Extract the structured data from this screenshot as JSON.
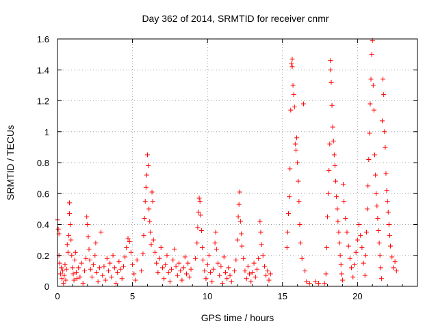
{
  "chart_data": {
    "type": "scatter",
    "title": "Day 362 of 2014, SRMTID for receiver cnmr",
    "xlabel": "GPS time / hours",
    "ylabel": "SRMTID / TECUs",
    "xlim": [
      0,
      24
    ],
    "ylim": [
      0,
      1.6
    ],
    "xticks": [
      "0",
      "5",
      "10",
      "15",
      "20"
    ],
    "yticks": [
      "0",
      "0.2",
      "0.4",
      "0.6",
      "0.8",
      "1",
      "1.2",
      "1.4",
      "1.6"
    ],
    "grid": true,
    "marker": "plus",
    "series": [
      {
        "color": "#ff0000",
        "points": [
          [
            0.0,
            0.43
          ],
          [
            0.05,
            0.37
          ],
          [
            0.1,
            0.34
          ],
          [
            0.1,
            0.2
          ],
          [
            0.15,
            0.15
          ],
          [
            0.2,
            0.08
          ],
          [
            0.25,
            0.12
          ],
          [
            0.3,
            0.05
          ],
          [
            0.35,
            0.1
          ],
          [
            0.4,
            0.02
          ],
          [
            0.45,
            0.07
          ],
          [
            0.5,
            0.14
          ],
          [
            0.55,
            0.04
          ],
          [
            0.6,
            0.11
          ],
          [
            0.65,
            0.27
          ],
          [
            0.7,
            0.22
          ],
          [
            0.75,
            0.33
          ],
          [
            0.8,
            0.54
          ],
          [
            0.8,
            0.47
          ],
          [
            0.85,
            0.4
          ],
          [
            0.9,
            0.3
          ],
          [
            0.95,
            0.2
          ],
          [
            1.0,
            0.12
          ],
          [
            1.05,
            0.08
          ],
          [
            1.1,
            0.04
          ],
          [
            1.15,
            0.17
          ],
          [
            1.2,
            0.22
          ],
          [
            1.25,
            0.09
          ],
          [
            1.3,
            0.05
          ],
          [
            1.4,
            0.12
          ],
          [
            1.5,
            0.06
          ],
          [
            1.6,
            0.15
          ],
          [
            1.7,
            0.02
          ],
          [
            1.8,
            0.1
          ],
          [
            1.9,
            0.18
          ],
          [
            1.95,
            0.45
          ],
          [
            2.0,
            0.4
          ],
          [
            2.05,
            0.32
          ],
          [
            2.1,
            0.24
          ],
          [
            2.15,
            0.17
          ],
          [
            2.2,
            0.11
          ],
          [
            2.3,
            0.06
          ],
          [
            2.4,
            0.14
          ],
          [
            2.5,
            0.2
          ],
          [
            2.55,
            0.28
          ],
          [
            2.6,
            0.09
          ],
          [
            2.7,
            0.03
          ],
          [
            2.8,
            0.12
          ],
          [
            2.9,
            0.35
          ],
          [
            3.0,
            0.07
          ],
          [
            3.1,
            0.13
          ],
          [
            3.2,
            0.04
          ],
          [
            3.3,
            0.18
          ],
          [
            3.4,
            0.1
          ],
          [
            3.5,
            0.15
          ],
          [
            3.6,
            0.06
          ],
          [
            3.7,
            0.2
          ],
          [
            3.8,
            0.12
          ],
          [
            3.9,
            0.02
          ],
          [
            4.0,
            0.09
          ],
          [
            4.1,
            0.16
          ],
          [
            4.2,
            0.11
          ],
          [
            4.3,
            0.05
          ],
          [
            4.4,
            0.13
          ],
          [
            4.5,
            0.19
          ],
          [
            4.6,
            0.25
          ],
          [
            4.7,
            0.31
          ],
          [
            4.8,
            0.29
          ],
          [
            4.9,
            0.22
          ],
          [
            5.0,
            0.14
          ],
          [
            5.1,
            0.08
          ],
          [
            5.2,
            0.04
          ],
          [
            5.3,
            0.17
          ],
          [
            5.6,
            0.1
          ],
          [
            5.7,
            0.21
          ],
          [
            5.75,
            0.33
          ],
          [
            5.8,
            0.44
          ],
          [
            5.85,
            0.55
          ],
          [
            5.9,
            0.64
          ],
          [
            5.95,
            0.72
          ],
          [
            6.0,
            0.85
          ],
          [
            6.05,
            0.78
          ],
          [
            6.1,
            0.5
          ],
          [
            6.15,
            0.42
          ],
          [
            6.2,
            0.35
          ],
          [
            6.25,
            0.27
          ],
          [
            6.3,
            0.61
          ],
          [
            6.35,
            0.55
          ],
          [
            6.4,
            0.3
          ],
          [
            6.5,
            0.22
          ],
          [
            6.6,
            0.15
          ],
          [
            6.7,
            0.09
          ],
          [
            6.8,
            0.18
          ],
          [
            6.9,
            0.25
          ],
          [
            7.0,
            0.12
          ],
          [
            7.1,
            0.05
          ],
          [
            7.2,
            0.14
          ],
          [
            7.3,
            0.2
          ],
          [
            7.4,
            0.09
          ],
          [
            7.5,
            0.03
          ],
          [
            7.6,
            0.11
          ],
          [
            7.7,
            0.17
          ],
          [
            7.8,
            0.24
          ],
          [
            7.9,
            0.13
          ],
          [
            8.0,
            0.07
          ],
          [
            8.1,
            0.15
          ],
          [
            8.2,
            0.1
          ],
          [
            8.3,
            0.04
          ],
          [
            8.4,
            0.12
          ],
          [
            8.5,
            0.19
          ],
          [
            8.6,
            0.08
          ],
          [
            8.7,
            0.15
          ],
          [
            8.8,
            0.06
          ],
          [
            8.9,
            0.11
          ],
          [
            9.2,
            0.18
          ],
          [
            9.3,
            0.28
          ],
          [
            9.35,
            0.38
          ],
          [
            9.4,
            0.48
          ],
          [
            9.45,
            0.57
          ],
          [
            9.5,
            0.55
          ],
          [
            9.55,
            0.46
          ],
          [
            9.6,
            0.36
          ],
          [
            9.65,
            0.25
          ],
          [
            9.7,
            0.17
          ],
          [
            9.8,
            0.1
          ],
          [
            9.9,
            0.05
          ],
          [
            10.0,
            0.14
          ],
          [
            10.1,
            0.2
          ],
          [
            10.2,
            0.09
          ],
          [
            10.3,
            0.03
          ],
          [
            10.4,
            0.11
          ],
          [
            10.5,
            0.28
          ],
          [
            10.55,
            0.35
          ],
          [
            10.6,
            0.24
          ],
          [
            10.7,
            0.15
          ],
          [
            10.8,
            0.07
          ],
          [
            10.9,
            0.13
          ],
          [
            11.0,
            0.02
          ],
          [
            11.1,
            0.19
          ],
          [
            11.2,
            0.09
          ],
          [
            11.3,
            0.05
          ],
          [
            11.4,
            0.12
          ],
          [
            11.5,
            0.07
          ],
          [
            11.6,
            0.03
          ],
          [
            11.8,
            0.1
          ],
          [
            11.9,
            0.17
          ],
          [
            12.0,
            0.3
          ],
          [
            12.05,
            0.45
          ],
          [
            12.1,
            0.53
          ],
          [
            12.15,
            0.61
          ],
          [
            12.2,
            0.42
          ],
          [
            12.25,
            0.34
          ],
          [
            12.3,
            0.26
          ],
          [
            12.4,
            0.18
          ],
          [
            12.5,
            0.1
          ],
          [
            12.6,
            0.05
          ],
          [
            12.7,
            0.13
          ],
          [
            12.8,
            0.08
          ],
          [
            12.9,
            0.03
          ],
          [
            13.0,
            0.09
          ],
          [
            13.1,
            0.15
          ],
          [
            13.2,
            0.06
          ],
          [
            13.3,
            0.11
          ],
          [
            13.4,
            0.18
          ],
          [
            13.5,
            0.42
          ],
          [
            13.55,
            0.35
          ],
          [
            13.6,
            0.27
          ],
          [
            13.7,
            0.2
          ],
          [
            13.8,
            0.13
          ],
          [
            13.9,
            0.07
          ],
          [
            14.0,
            0.1
          ],
          [
            14.1,
            0.04
          ],
          [
            14.2,
            0.08
          ],
          [
            15.3,
            0.25
          ],
          [
            15.35,
            0.35
          ],
          [
            15.4,
            0.47
          ],
          [
            15.45,
            0.58
          ],
          [
            15.5,
            0.76
          ],
          [
            15.55,
            1.14
          ],
          [
            15.6,
            1.44
          ],
          [
            15.65,
            1.47
          ],
          [
            15.65,
            1.42
          ],
          [
            15.7,
            1.3
          ],
          [
            15.75,
            1.24
          ],
          [
            15.8,
            1.16
          ],
          [
            15.85,
            0.92
          ],
          [
            15.9,
            0.88
          ],
          [
            15.95,
            0.96
          ],
          [
            16.0,
            0.8
          ],
          [
            16.05,
            0.68
          ],
          [
            16.1,
            0.55
          ],
          [
            16.15,
            0.4
          ],
          [
            16.2,
            0.28
          ],
          [
            16.3,
            0.18
          ],
          [
            16.4,
            1.18
          ],
          [
            16.5,
            0.1
          ],
          [
            16.6,
            0.03
          ],
          [
            16.8,
            0.02
          ],
          [
            17.2,
            0.03
          ],
          [
            17.4,
            0.02
          ],
          [
            17.8,
            0.02
          ],
          [
            17.9,
            0.08
          ],
          [
            17.95,
            0.25
          ],
          [
            18.0,
            0.45
          ],
          [
            18.05,
            0.6
          ],
          [
            18.1,
            0.75
          ],
          [
            18.15,
            0.92
          ],
          [
            18.2,
            1.46
          ],
          [
            18.2,
            1.4
          ],
          [
            18.25,
            1.32
          ],
          [
            18.3,
            1.17
          ],
          [
            18.35,
            1.03
          ],
          [
            18.4,
            0.94
          ],
          [
            18.45,
            0.85
          ],
          [
            18.5,
            0.78
          ],
          [
            18.55,
            0.68
          ],
          [
            18.6,
            0.58
          ],
          [
            18.65,
            0.5
          ],
          [
            18.7,
            0.42
          ],
          [
            18.75,
            0.35
          ],
          [
            18.8,
            0.28
          ],
          [
            18.85,
            0.2
          ],
          [
            18.9,
            0.14
          ],
          [
            18.95,
            0.08
          ],
          [
            19.0,
            0.04
          ],
          [
            19.05,
            0.66
          ],
          [
            19.1,
            0.55
          ],
          [
            19.2,
            0.44
          ],
          [
            19.3,
            0.35
          ],
          [
            19.4,
            0.26
          ],
          [
            19.5,
            0.18
          ],
          [
            19.6,
            0.12
          ],
          [
            19.7,
            0.06
          ],
          [
            19.8,
            0.14
          ],
          [
            19.9,
            0.22
          ],
          [
            20.0,
            0.3
          ],
          [
            20.1,
            0.4
          ],
          [
            20.2,
            0.33
          ],
          [
            20.3,
            0.25
          ],
          [
            20.4,
            0.15
          ],
          [
            20.5,
            0.07
          ],
          [
            20.55,
            0.2
          ],
          [
            20.6,
            0.35
          ],
          [
            20.65,
            0.5
          ],
          [
            20.7,
            0.65
          ],
          [
            20.75,
            0.82
          ],
          [
            20.8,
            0.99
          ],
          [
            20.85,
            1.18
          ],
          [
            20.9,
            1.34
          ],
          [
            20.95,
            1.5
          ],
          [
            21.0,
            1.59
          ],
          [
            21.05,
            1.3
          ],
          [
            21.1,
            1.14
          ],
          [
            21.15,
            0.85
          ],
          [
            21.2,
            0.72
          ],
          [
            21.25,
            0.6
          ],
          [
            21.3,
            0.52
          ],
          [
            21.35,
            0.44
          ],
          [
            21.4,
            0.36
          ],
          [
            21.45,
            0.28
          ],
          [
            21.5,
            0.2
          ],
          [
            21.55,
            0.12
          ],
          [
            21.6,
            0.05
          ],
          [
            21.65,
            1.07
          ],
          [
            21.7,
            1.34
          ],
          [
            21.75,
            1.24
          ],
          [
            21.8,
            1.0
          ],
          [
            21.85,
            0.9
          ],
          [
            21.9,
            0.73
          ],
          [
            21.95,
            0.62
          ],
          [
            22.0,
            0.55
          ],
          [
            22.05,
            0.48
          ],
          [
            22.1,
            0.4
          ],
          [
            22.15,
            0.33
          ],
          [
            22.2,
            0.26
          ],
          [
            22.3,
            0.19
          ],
          [
            22.4,
            0.12
          ],
          [
            22.5,
            0.16
          ],
          [
            22.6,
            0.1
          ]
        ]
      }
    ]
  }
}
